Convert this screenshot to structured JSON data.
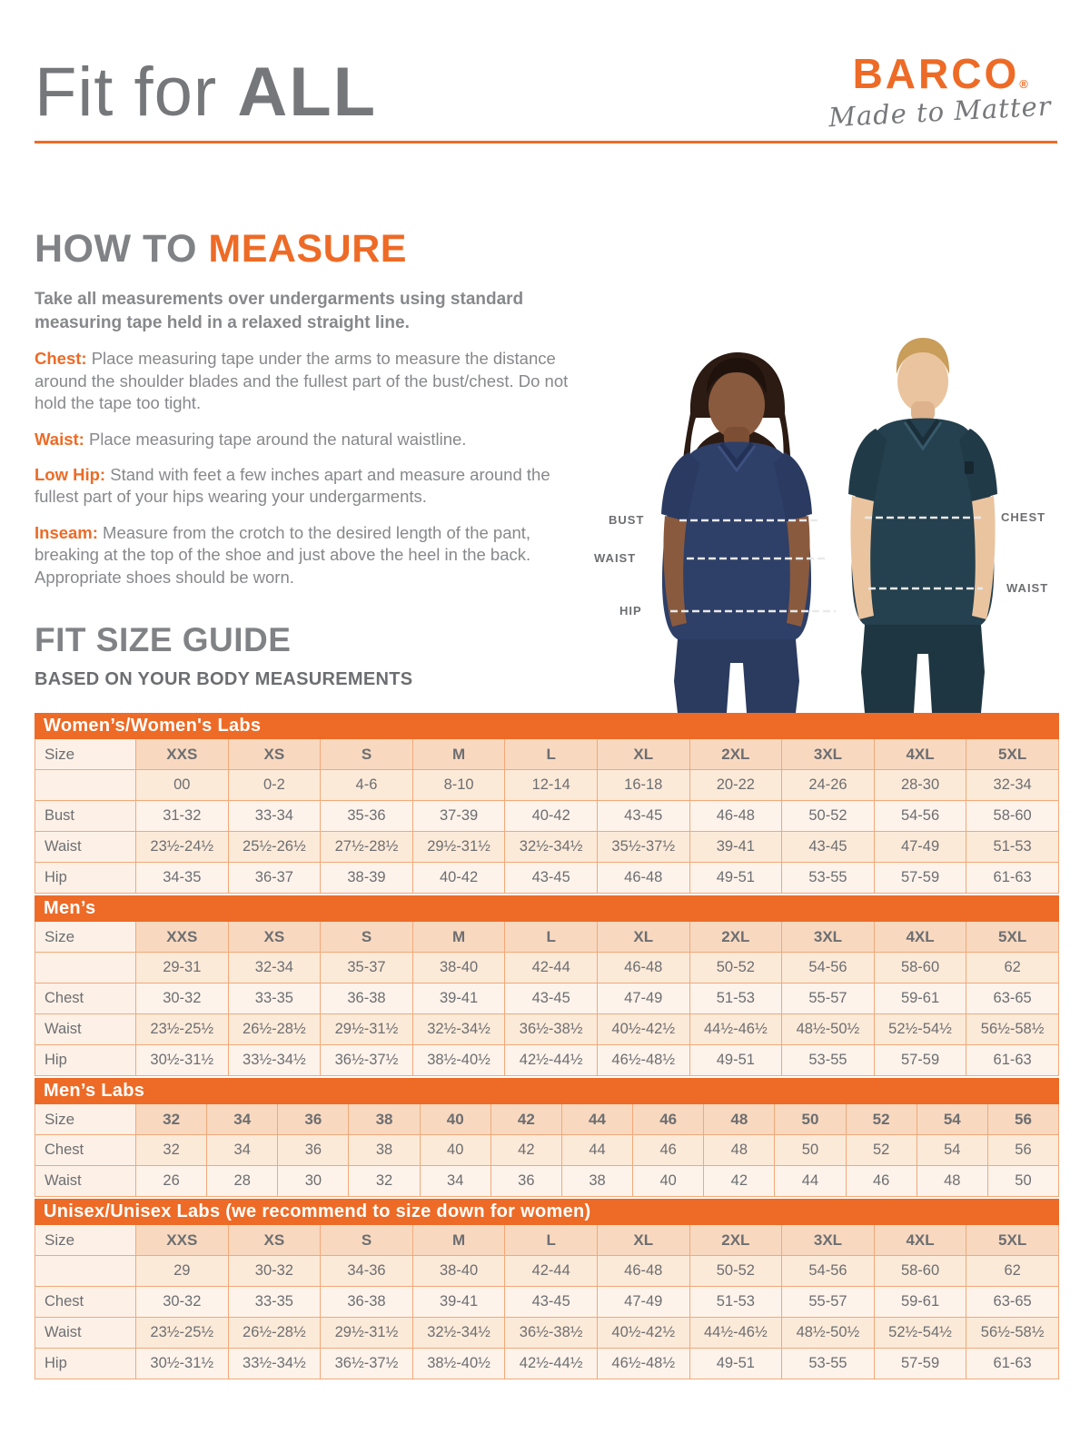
{
  "header": {
    "title_regular": "Fit for ",
    "title_bold": "ALL",
    "accent_color": "#ed6b26",
    "title_color": "#76777a"
  },
  "logo": {
    "brand": "BARCO",
    "registered_mark": "®",
    "tagline": "Made to Matter"
  },
  "how_to_measure": {
    "heading_gray": "HOW TO ",
    "heading_orange": "MEASURE",
    "intro": "Take all measurements over undergarments using standard measuring tape held in a relaxed straight line.",
    "items": [
      {
        "label": "Chest:",
        "text": " Place measuring tape under the arms to measure the distance around the shoulder blades and the fullest part of the bust/chest. Do not hold the tape too tight."
      },
      {
        "label": "Waist:",
        "text": " Place measuring tape around the natural waistline."
      },
      {
        "label": "Low Hip:",
        "text": " Stand with feet a few inches apart and measure around the fullest part of your hips wearing your undergarments."
      },
      {
        "label": "Inseam:",
        "text": " Measure from the crotch to the desired length of the pant, breaking at the top of the shoe and just above the heel in the back. Appropriate shoes should be worn."
      }
    ]
  },
  "figure": {
    "labels": {
      "bust": "BUST",
      "waist_female": "WAIST",
      "hip": "HIP",
      "chest": "CHEST",
      "waist_male": "WAIST"
    }
  },
  "size_guide": {
    "heading": "FIT SIZE GUIDE",
    "subheading": "BASED ON YOUR BODY MEASUREMENTS",
    "tables": [
      {
        "title": "Women’s/Women's Labs",
        "row_label_header": "Size",
        "size_labels": [
          "XXS",
          "XS",
          "S",
          "M",
          "L",
          "XL",
          "2XL",
          "3XL",
          "4XL",
          "5XL"
        ],
        "rows": [
          {
            "label": "",
            "values": [
              "00",
              "0-2",
              "4-6",
              "8-10",
              "12-14",
              "16-18",
              "20-22",
              "24-26",
              "28-30",
              "32-34"
            ]
          },
          {
            "label": "Bust",
            "values": [
              "31-32",
              "33-34",
              "35-36",
              "37-39",
              "40-42",
              "43-45",
              "46-48",
              "50-52",
              "54-56",
              "58-60"
            ]
          },
          {
            "label": "Waist",
            "values": [
              "23½-24½",
              "25½-26½",
              "27½-28½",
              "29½-31½",
              "32½-34½",
              "35½-37½",
              "39-41",
              "43-45",
              "47-49",
              "51-53"
            ]
          },
          {
            "label": "Hip",
            "values": [
              "34-35",
              "36-37",
              "38-39",
              "40-42",
              "43-45",
              "46-48",
              "49-51",
              "53-55",
              "57-59",
              "61-63"
            ]
          }
        ]
      },
      {
        "title": "Men’s",
        "row_label_header": "Size",
        "size_labels": [
          "XXS",
          "XS",
          "S",
          "M",
          "L",
          "XL",
          "2XL",
          "3XL",
          "4XL",
          "5XL"
        ],
        "rows": [
          {
            "label": "",
            "values": [
              "29-31",
              "32-34",
              "35-37",
              "38-40",
              "42-44",
              "46-48",
              "50-52",
              "54-56",
              "58-60",
              "62"
            ]
          },
          {
            "label": "Chest",
            "values": [
              "30-32",
              "33-35",
              "36-38",
              "39-41",
              "43-45",
              "47-49",
              "51-53",
              "55-57",
              "59-61",
              "63-65"
            ]
          },
          {
            "label": "Waist",
            "values": [
              "23½-25½",
              "26½-28½",
              "29½-31½",
              "32½-34½",
              "36½-38½",
              "40½-42½",
              "44½-46½",
              "48½-50½",
              "52½-54½",
              "56½-58½"
            ]
          },
          {
            "label": "Hip",
            "values": [
              "30½-31½",
              "33½-34½",
              "36½-37½",
              "38½-40½",
              "42½-44½",
              "46½-48½",
              "49-51",
              "53-55",
              "57-59",
              "61-63"
            ]
          }
        ]
      },
      {
        "title": "Men’s Labs",
        "row_label_header": "Size",
        "size_labels": [
          "32",
          "34",
          "36",
          "38",
          "40",
          "42",
          "44",
          "46",
          "48",
          "50",
          "52",
          "54",
          "56"
        ],
        "rows": [
          {
            "label": "Chest",
            "values": [
              "32",
              "34",
              "36",
              "38",
              "40",
              "42",
              "44",
              "46",
              "48",
              "50",
              "52",
              "54",
              "56"
            ]
          },
          {
            "label": "Waist",
            "values": [
              "26",
              "28",
              "30",
              "32",
              "34",
              "36",
              "38",
              "40",
              "42",
              "44",
              "46",
              "48",
              "50"
            ]
          }
        ]
      },
      {
        "title": "Unisex/Unisex Labs (we recommend to size down for women)",
        "row_label_header": "Size",
        "size_labels": [
          "XXS",
          "XS",
          "S",
          "M",
          "L",
          "XL",
          "2XL",
          "3XL",
          "4XL",
          "5XL"
        ],
        "rows": [
          {
            "label": "",
            "values": [
              "29",
              "30-32",
              "34-36",
              "38-40",
              "42-44",
              "46-48",
              "50-52",
              "54-56",
              "58-60",
              "62"
            ]
          },
          {
            "label": "Chest",
            "values": [
              "30-32",
              "33-35",
              "36-38",
              "39-41",
              "43-45",
              "47-49",
              "51-53",
              "55-57",
              "59-61",
              "63-65"
            ]
          },
          {
            "label": "Waist",
            "values": [
              "23½-25½",
              "26½-28½",
              "29½-31½",
              "32½-34½",
              "36½-38½",
              "40½-42½",
              "44½-46½",
              "48½-50½",
              "52½-54½",
              "56½-58½"
            ]
          },
          {
            "label": "Hip",
            "values": [
              "30½-31½",
              "33½-34½",
              "36½-37½",
              "38½-40½",
              "42½-44½",
              "46½-48½",
              "49-51",
              "53-55",
              "57-59",
              "61-63"
            ]
          }
        ]
      }
    ]
  }
}
